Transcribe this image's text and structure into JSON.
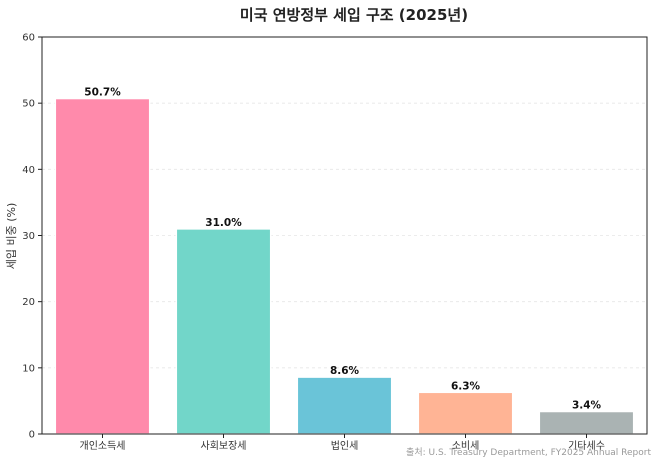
{
  "chart_data": {
    "type": "bar",
    "title": "미국 연방정부 세입 구조 (2025년)",
    "ylabel": "세입 비중 (%)",
    "xlabel": "",
    "ylim": [
      0,
      60
    ],
    "yticks": [
      0,
      10,
      20,
      30,
      40,
      50,
      60
    ],
    "categories": [
      "개인소득세",
      "사회보장세",
      "법인세",
      "소비세",
      "기타세수"
    ],
    "values": [
      50.7,
      31.0,
      8.6,
      6.3,
      3.4
    ],
    "data_labels": [
      "50.7%",
      "31.0%",
      "8.6%",
      "6.3%",
      "3.4%"
    ],
    "colors": [
      "#ff8aab",
      "#72d6c9",
      "#6ac4d8",
      "#ffb495",
      "#aab3b3"
    ],
    "grid": true,
    "source": "출처: U.S. Treasury Department, FY2025 Annual Report"
  }
}
